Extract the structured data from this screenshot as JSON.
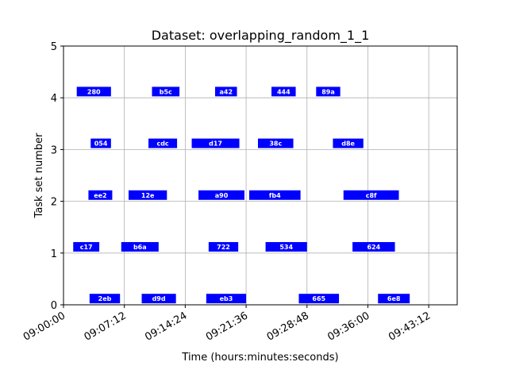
{
  "chart_data": {
    "type": "bar",
    "orientation": "horizontal-gantt",
    "title": "Dataset: overlapping_random_1_1",
    "xlabel": "Time (hours:minutes:seconds)",
    "ylabel": "Task set number",
    "xlim": [
      "09:00:00",
      "09:46:34"
    ],
    "ylim": [
      0,
      5
    ],
    "x_ticks": [
      "09:00:00",
      "09:07:12",
      "09:14:24",
      "09:21:36",
      "09:28:48",
      "09:36:00",
      "09:43:12"
    ],
    "y_ticks": [
      "0",
      "1",
      "2",
      "3",
      "4",
      "5"
    ],
    "grid": true,
    "bar_color": "#0000ff",
    "tasks": [
      {
        "set": 0,
        "label": "2eb",
        "start": "09:03:05",
        "end": "09:06:41"
      },
      {
        "set": 0,
        "label": "d9d",
        "start": "09:09:15",
        "end": "09:13:18"
      },
      {
        "set": 0,
        "label": "eb3",
        "start": "09:16:53",
        "end": "09:21:36"
      },
      {
        "set": 0,
        "label": "665",
        "start": "09:27:50",
        "end": "09:32:35"
      },
      {
        "set": 0,
        "label": "6e8",
        "start": "09:37:12",
        "end": "09:40:57"
      },
      {
        "set": 1,
        "label": "c17",
        "start": "09:01:09",
        "end": "09:04:14"
      },
      {
        "set": 1,
        "label": "b6a",
        "start": "09:06:50",
        "end": "09:11:15"
      },
      {
        "set": 1,
        "label": "722",
        "start": "09:17:10",
        "end": "09:20:40"
      },
      {
        "set": 1,
        "label": "534",
        "start": "09:23:54",
        "end": "09:28:48"
      },
      {
        "set": 1,
        "label": "624",
        "start": "09:34:11",
        "end": "09:39:12"
      },
      {
        "set": 2,
        "label": "ee2",
        "start": "09:02:57",
        "end": "09:05:46"
      },
      {
        "set": 2,
        "label": "12e",
        "start": "09:07:42",
        "end": "09:12:14"
      },
      {
        "set": 2,
        "label": "a90",
        "start": "09:15:58",
        "end": "09:21:24"
      },
      {
        "set": 2,
        "label": "fb4",
        "start": "09:21:58",
        "end": "09:28:02"
      },
      {
        "set": 2,
        "label": "c8f",
        "start": "09:33:07",
        "end": "09:39:40"
      },
      {
        "set": 3,
        "label": "054",
        "start": "09:03:13",
        "end": "09:05:37"
      },
      {
        "set": 3,
        "label": "cdc",
        "start": "09:10:03",
        "end": "09:13:26"
      },
      {
        "set": 3,
        "label": "d17",
        "start": "09:15:10",
        "end": "09:20:48"
      },
      {
        "set": 3,
        "label": "38c",
        "start": "09:23:00",
        "end": "09:27:11"
      },
      {
        "set": 3,
        "label": "d8e",
        "start": "09:31:52",
        "end": "09:35:28"
      },
      {
        "set": 4,
        "label": "280",
        "start": "09:01:34",
        "end": "09:05:37"
      },
      {
        "set": 4,
        "label": "b5c",
        "start": "09:10:28",
        "end": "09:13:43"
      },
      {
        "set": 4,
        "label": "a42",
        "start": "09:17:56",
        "end": "09:20:31"
      },
      {
        "set": 4,
        "label": "444",
        "start": "09:24:36",
        "end": "09:27:28"
      },
      {
        "set": 4,
        "label": "89a",
        "start": "09:29:53",
        "end": "09:32:44"
      }
    ]
  }
}
